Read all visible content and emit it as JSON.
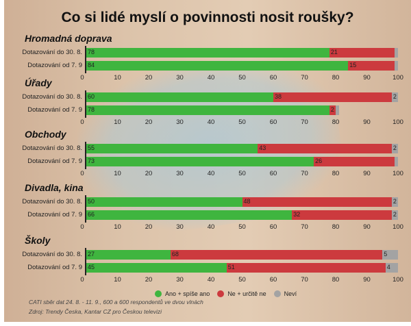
{
  "title": "Co si lidé myslí o povinnosti nosit roušky?",
  "chart_data": {
    "type": "bar",
    "stacked": true,
    "orientation": "horizontal",
    "title": "Co si lidé myslí o povinnosti nosit roušky?",
    "xlim": [
      0,
      100
    ],
    "ticks": [
      "0",
      "10",
      "20",
      "30",
      "40",
      "50",
      "60",
      "70",
      "80",
      "90",
      "100"
    ],
    "legend": [
      "Ano + spíše ano",
      "Ne + určitě ne",
      "Neví"
    ],
    "legend_position": "bottom",
    "colors": [
      "#3fb53f",
      "#cc3a3e",
      "#a3a3a3"
    ],
    "groups": [
      {
        "name": "Hromadná doprava",
        "rows": [
          {
            "label": "Dotazování do 30. 8.",
            "values": [
              78,
              21,
              1
            ],
            "labels": [
              "78",
              "21",
              ""
            ]
          },
          {
            "label": "Dotazování od 7. 9",
            "values": [
              84,
              15,
              1
            ],
            "labels": [
              "84",
              "15",
              ""
            ]
          }
        ]
      },
      {
        "name": "Úřady",
        "rows": [
          {
            "label": "Dotazování do 30. 8.",
            "values": [
              60,
              38,
              2
            ],
            "labels": [
              "60",
              "38",
              "2"
            ]
          },
          {
            "label": "Dotazování od 7. 9",
            "values": [
              78,
              2,
              1
            ],
            "labels": [
              "78",
              "2",
              ""
            ]
          }
        ]
      },
      {
        "name": "Obchody",
        "rows": [
          {
            "label": "Dotazování do 30. 8.",
            "values": [
              55,
              43,
              2
            ],
            "labels": [
              "55",
              "43",
              "2"
            ]
          },
          {
            "label": "Dotazování od 7. 9",
            "values": [
              73,
              26,
              1
            ],
            "labels": [
              "73",
              "26",
              ""
            ]
          }
        ]
      },
      {
        "name": "Divadla, kina",
        "rows": [
          {
            "label": "Dotazování do 30. 8.",
            "values": [
              50,
              48,
              2
            ],
            "labels": [
              "50",
              "48",
              "2"
            ]
          },
          {
            "label": "Dotazování od 7. 9",
            "values": [
              66,
              32,
              2
            ],
            "labels": [
              "66",
              "32",
              "2"
            ]
          }
        ]
      },
      {
        "name": "Školy",
        "rows": [
          {
            "label": "Dotazování do 30. 8.",
            "values": [
              27,
              68,
              5
            ],
            "labels": [
              "27",
              "68",
              "5"
            ]
          },
          {
            "label": "Dotazování od 7. 9",
            "values": [
              45,
              51,
              4
            ],
            "labels": [
              "45",
              "51",
              "4"
            ]
          }
        ]
      }
    ]
  },
  "notes": [
    "CATI sběr dat 24. 8. - 11. 9., 600 a 600 respondentů ve dvou vlnách",
    "Zdroj: Trendy Česka, Kantar CZ pro Českou televizi"
  ]
}
